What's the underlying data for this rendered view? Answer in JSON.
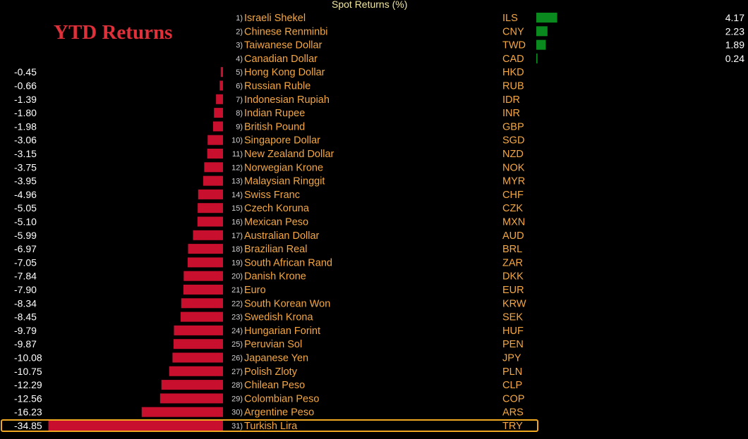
{
  "title": "YTD Returns",
  "header": "Spot Returns (%)",
  "colors": {
    "negative": "#c8102e",
    "positive": "#0a8a1e",
    "label": "#f5a742",
    "value": "#ffffff",
    "number": "#d0d0d0",
    "highlight": "#f0a820"
  },
  "chart_data": {
    "type": "bar",
    "orientation": "horizontal",
    "title": "YTD Returns",
    "header": "Spot Returns (%)",
    "highlighted": "TRY",
    "categories": [
      "Israeli Shekel",
      "Chinese Renminbi",
      "Taiwanese Dollar",
      "Canadian Dollar",
      "Hong Kong Dollar",
      "Russian Ruble",
      "Indonesian Rupiah",
      "Indian Rupee",
      "British Pound",
      "Singapore Dollar",
      "New Zealand Dollar",
      "Norwegian Krone",
      "Malaysian Ringgit",
      "Swiss Franc",
      "Czech Koruna",
      "Mexican Peso",
      "Australian Dollar",
      "Brazilian Real",
      "South African Rand",
      "Danish Krone",
      "Euro",
      "South Korean Won",
      "Swedish Krona",
      "Hungarian Forint",
      "Peruvian Sol",
      "Japanese Yen",
      "Polish Zloty",
      "Chilean Peso",
      "Colombian Peso",
      "Argentine Peso",
      "Turkish Lira"
    ],
    "codes": [
      "ILS",
      "CNY",
      "TWD",
      "CAD",
      "HKD",
      "RUB",
      "IDR",
      "INR",
      "GBP",
      "SGD",
      "NZD",
      "NOK",
      "MYR",
      "CHF",
      "CZK",
      "MXN",
      "AUD",
      "BRL",
      "ZAR",
      "DKK",
      "EUR",
      "KRW",
      "SEK",
      "HUF",
      "PEN",
      "JPY",
      "PLN",
      "CLP",
      "COP",
      "ARS",
      "TRY"
    ],
    "values": [
      4.17,
      2.23,
      1.89,
      0.24,
      -0.45,
      -0.66,
      -1.39,
      -1.8,
      -1.98,
      -3.06,
      -3.15,
      -3.75,
      -3.95,
      -4.96,
      -5.05,
      -5.1,
      -5.99,
      -6.97,
      -7.05,
      -7.84,
      -7.9,
      -8.34,
      -8.45,
      -9.79,
      -9.87,
      -10.08,
      -10.75,
      -12.29,
      -12.56,
      -16.23,
      -34.85
    ]
  }
}
